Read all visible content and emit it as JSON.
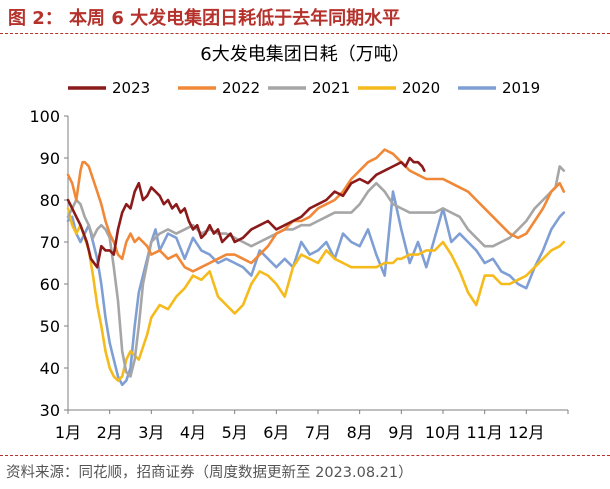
{
  "figure": {
    "title": "图 2： 本周 6 大发电集团日耗低于去年同期水平",
    "source": "资料来源：同花顺，招商证券（周度数据更新至 2023.08.21）"
  },
  "chart_data": {
    "type": "line",
    "title": "6大发电集团日耗（万吨）",
    "xlabel": "",
    "ylabel": "",
    "ylim": [
      30,
      100
    ],
    "yticks": [
      30,
      40,
      50,
      60,
      70,
      80,
      90,
      100
    ],
    "xlim": [
      0,
      12
    ],
    "xticks": [
      "1月",
      "2月",
      "3月",
      "4月",
      "5月",
      "6月",
      "7月",
      "8月",
      "9月",
      "10月",
      "11月",
      "12月"
    ],
    "grid": false,
    "legend": "top",
    "series": [
      {
        "name": "2023",
        "color": "#8b1a1a",
        "x": [
          0.0,
          0.1,
          0.2,
          0.3,
          0.45,
          0.55,
          0.7,
          0.8,
          0.9,
          1.0,
          1.1,
          1.2,
          1.3,
          1.4,
          1.5,
          1.6,
          1.7,
          1.8,
          1.9,
          2.0,
          2.1,
          2.2,
          2.3,
          2.4,
          2.5,
          2.6,
          2.7,
          2.8,
          2.9,
          3.0,
          3.1,
          3.2,
          3.3,
          3.4,
          3.5,
          3.6,
          3.7,
          3.8,
          3.9,
          4.0,
          4.2,
          4.4,
          4.6,
          4.8,
          5.0,
          5.2,
          5.4,
          5.6,
          5.8,
          6.0,
          6.2,
          6.4,
          6.6,
          6.8,
          7.0,
          7.2,
          7.4,
          7.6,
          7.8,
          8.0,
          8.1,
          8.2,
          8.3,
          8.4,
          8.5,
          8.55
        ],
        "values": [
          80,
          78,
          76,
          74,
          70,
          66,
          64,
          69,
          68,
          68,
          67,
          73,
          77,
          79,
          78,
          82,
          84,
          80,
          81,
          83,
          82,
          81,
          79,
          80,
          78,
          79,
          77,
          78,
          75,
          73,
          74,
          71,
          72,
          74,
          72,
          73,
          70,
          71,
          72,
          70,
          71,
          73,
          74,
          75,
          73,
          74,
          75,
          76,
          78,
          79,
          80,
          82,
          81,
          84,
          85,
          84,
          86,
          87,
          88,
          89,
          88,
          90,
          89,
          89,
          88,
          87
        ]
      },
      {
        "name": "2022",
        "color": "#f08838",
        "x": [
          0.0,
          0.1,
          0.2,
          0.3,
          0.35,
          0.4,
          0.5,
          0.6,
          0.7,
          0.8,
          0.9,
          1.0,
          1.1,
          1.2,
          1.3,
          1.4,
          1.5,
          1.6,
          1.7,
          1.8,
          1.9,
          2.0,
          2.2,
          2.4,
          2.6,
          2.8,
          3.0,
          3.2,
          3.4,
          3.6,
          3.8,
          4.0,
          4.2,
          4.4,
          4.6,
          4.8,
          5.0,
          5.2,
          5.4,
          5.6,
          5.8,
          6.0,
          6.2,
          6.4,
          6.6,
          6.8,
          7.0,
          7.2,
          7.4,
          7.6,
          7.8,
          8.0,
          8.2,
          8.4,
          8.6,
          8.8,
          9.0,
          9.2,
          9.4,
          9.6,
          9.8,
          10.0,
          10.2,
          10.4,
          10.6,
          10.8,
          11.0,
          11.2,
          11.4,
          11.6,
          11.8,
          11.9
        ],
        "values": [
          86,
          84,
          80,
          87,
          89,
          89,
          88,
          85,
          82,
          79,
          75,
          72,
          70,
          67,
          66,
          70,
          72,
          70,
          71,
          70,
          69,
          67,
          68,
          66,
          67,
          64,
          63,
          64,
          65,
          66,
          67,
          67,
          66,
          65,
          67,
          69,
          72,
          73,
          75,
          75,
          76,
          78,
          79,
          80,
          82,
          85,
          87,
          89,
          90,
          92,
          91,
          89,
          87,
          86,
          85,
          85,
          85,
          84,
          83,
          82,
          80,
          78,
          76,
          74,
          72,
          71,
          72,
          75,
          78,
          82,
          84,
          82
        ]
      },
      {
        "name": "2021",
        "color": "#a6a6a6",
        "x": [
          0.0,
          0.1,
          0.2,
          0.3,
          0.4,
          0.5,
          0.6,
          0.7,
          0.8,
          0.9,
          1.0,
          1.1,
          1.2,
          1.3,
          1.4,
          1.5,
          1.6,
          1.7,
          1.8,
          1.9,
          2.0,
          2.2,
          2.4,
          2.6,
          2.8,
          3.0,
          3.2,
          3.4,
          3.6,
          3.8,
          4.0,
          4.2,
          4.4,
          4.6,
          4.8,
          5.0,
          5.2,
          5.4,
          5.6,
          5.8,
          6.0,
          6.2,
          6.4,
          6.6,
          6.8,
          7.0,
          7.2,
          7.4,
          7.6,
          7.8,
          8.0,
          8.2,
          8.4,
          8.6,
          8.8,
          9.0,
          9.2,
          9.4,
          9.6,
          9.8,
          10.0,
          10.2,
          10.4,
          10.6,
          10.8,
          11.0,
          11.2,
          11.4,
          11.6,
          11.7,
          11.8,
          11.9
        ],
        "values": [
          76,
          78,
          80,
          79,
          76,
          74,
          71,
          73,
          74,
          73,
          71,
          64,
          56,
          44,
          39,
          38,
          42,
          50,
          60,
          65,
          70,
          72,
          73,
          72,
          73,
          74,
          72,
          73,
          72,
          72,
          71,
          70,
          69,
          70,
          71,
          72,
          73,
          73,
          74,
          74,
          75,
          76,
          77,
          77,
          77,
          79,
          82,
          84,
          82,
          79,
          78,
          77,
          77,
          77,
          77,
          78,
          77,
          76,
          73,
          71,
          69,
          69,
          70,
          71,
          73,
          75,
          78,
          80,
          82,
          83,
          88,
          87
        ]
      },
      {
        "name": "2020",
        "color": "#f5bb1c",
        "x": [
          0.0,
          0.1,
          0.2,
          0.3,
          0.4,
          0.5,
          0.6,
          0.7,
          0.8,
          0.9,
          1.0,
          1.1,
          1.2,
          1.3,
          1.4,
          1.5,
          1.6,
          1.7,
          1.8,
          1.9,
          2.0,
          2.2,
          2.4,
          2.6,
          2.8,
          3.0,
          3.2,
          3.4,
          3.6,
          3.8,
          4.0,
          4.2,
          4.4,
          4.6,
          4.8,
          5.0,
          5.2,
          5.4,
          5.6,
          5.8,
          6.0,
          6.2,
          6.4,
          6.6,
          6.8,
          7.0,
          7.2,
          7.4,
          7.6,
          7.8,
          7.9,
          8.0,
          8.2,
          8.4,
          8.6,
          8.8,
          9.0,
          9.2,
          9.4,
          9.6,
          9.8,
          10.0,
          10.2,
          10.4,
          10.6,
          10.8,
          11.0,
          11.2,
          11.4,
          11.6,
          11.8,
          11.9
        ],
        "values": [
          78,
          74,
          72,
          74,
          71,
          68,
          62,
          55,
          50,
          44,
          40,
          38,
          37,
          38,
          42,
          44,
          43,
          42,
          45,
          48,
          52,
          55,
          54,
          57,
          59,
          62,
          61,
          63,
          57,
          55,
          53,
          55,
          60,
          63,
          62,
          60,
          57,
          64,
          67,
          66,
          65,
          68,
          66,
          65,
          64,
          64,
          64,
          64,
          65,
          65,
          66,
          66,
          67,
          67,
          68,
          68,
          70,
          67,
          63,
          58,
          55,
          62,
          62,
          60,
          60,
          61,
          62,
          64,
          66,
          68,
          69,
          70
        ]
      },
      {
        "name": "2019",
        "color": "#7f9fd4",
        "x": [
          0.0,
          0.1,
          0.2,
          0.3,
          0.4,
          0.5,
          0.6,
          0.7,
          0.8,
          0.9,
          1.0,
          1.1,
          1.2,
          1.3,
          1.4,
          1.5,
          1.6,
          1.7,
          1.8,
          1.9,
          2.0,
          2.1,
          2.2,
          2.4,
          2.6,
          2.8,
          3.0,
          3.2,
          3.4,
          3.6,
          3.8,
          4.0,
          4.2,
          4.4,
          4.6,
          4.8,
          5.0,
          5.2,
          5.4,
          5.6,
          5.8,
          6.0,
          6.2,
          6.4,
          6.6,
          6.8,
          7.0,
          7.2,
          7.4,
          7.6,
          7.8,
          8.0,
          8.2,
          8.4,
          8.6,
          8.8,
          9.0,
          9.2,
          9.4,
          9.6,
          9.8,
          10.0,
          10.2,
          10.4,
          10.6,
          10.8,
          11.0,
          11.2,
          11.4,
          11.6,
          11.8,
          11.9
        ],
        "values": [
          75,
          76,
          72,
          70,
          72,
          74,
          70,
          66,
          60,
          52,
          46,
          42,
          38,
          36,
          37,
          40,
          50,
          58,
          62,
          66,
          70,
          73,
          68,
          72,
          71,
          66,
          71,
          68,
          67,
          65,
          66,
          65,
          64,
          62,
          68,
          66,
          64,
          66,
          64,
          70,
          67,
          68,
          70,
          66,
          72,
          70,
          69,
          73,
          67,
          62,
          82,
          73,
          65,
          70,
          64,
          71,
          78,
          70,
          72,
          70,
          68,
          65,
          66,
          63,
          62,
          60,
          59,
          64,
          68,
          73,
          76,
          77
        ]
      }
    ]
  }
}
